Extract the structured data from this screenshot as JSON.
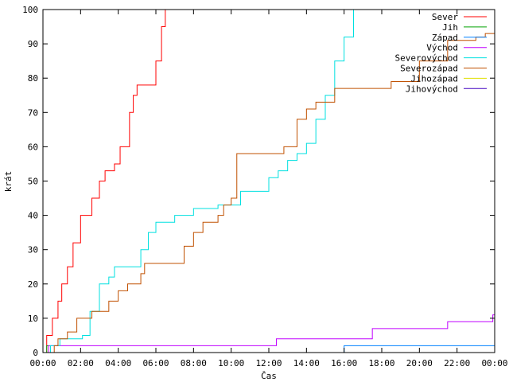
{
  "chart_data": {
    "type": "line",
    "xlabel": "Čas",
    "ylabel": "krát",
    "xlim": [
      0,
      24
    ],
    "ylim": [
      0,
      100
    ],
    "x_tick_labels": [
      "00:00",
      "02:00",
      "04:00",
      "06:00",
      "08:00",
      "10:00",
      "12:00",
      "14:00",
      "16:00",
      "18:00",
      "20:00",
      "22:00",
      "00:00"
    ],
    "y_ticks": [
      0,
      10,
      20,
      30,
      40,
      50,
      60,
      70,
      80,
      90,
      100
    ],
    "grid": false,
    "legend_position": "top-right",
    "series": [
      {
        "name": "Sever",
        "color": "#ff0000",
        "x": [
          0,
          0.2,
          0.5,
          0.8,
          1.0,
          1.3,
          1.6,
          2.0,
          2.1,
          2.6,
          3.0,
          3.3,
          3.8,
          4.1,
          4.6,
          4.8,
          5.0,
          5.8,
          6.0,
          6.3,
          6.5
        ],
        "y": [
          0,
          5,
          10,
          15,
          20,
          25,
          32,
          40,
          40,
          45,
          50,
          53,
          55,
          60,
          70,
          75,
          78,
          78,
          85,
          95,
          100
        ]
      },
      {
        "name": "Jih",
        "color": "#00a000",
        "x": [
          0,
          0.2,
          0.3
        ],
        "y": [
          0,
          2,
          2
        ]
      },
      {
        "name": "Západ",
        "color": "#0080ff",
        "x": [
          0,
          15.9,
          16.0,
          24
        ],
        "y": [
          0,
          0,
          2,
          2
        ]
      },
      {
        "name": "Východ",
        "color": "#c000ff",
        "x": [
          0,
          0.3,
          12.3,
          12.4,
          17.4,
          17.5,
          21.4,
          21.5,
          23.8,
          23.9,
          24
        ],
        "y": [
          0,
          2,
          2,
          4,
          4,
          7,
          7,
          9,
          9,
          11,
          11
        ]
      },
      {
        "name": "Severovýchod",
        "color": "#00e0e0",
        "x": [
          0,
          0.4,
          0.9,
          1.5,
          2.1,
          2.5,
          3.0,
          3.5,
          3.8,
          5.0,
          5.2,
          5.6,
          6.0,
          6.3,
          7.0,
          8.0,
          9.3,
          10.5,
          11.5,
          12.0,
          12.5,
          13.0,
          13.5,
          14.0,
          14.5,
          15.0,
          15.5,
          16.0,
          16.5
        ],
        "y": [
          0,
          2,
          4,
          4,
          5,
          12,
          20,
          22,
          25,
          25,
          30,
          35,
          38,
          38,
          40,
          42,
          43,
          47,
          47,
          51,
          53,
          56,
          58,
          61,
          68,
          75,
          85,
          92,
          100
        ]
      },
      {
        "name": "Severozápad",
        "color": "#c05000",
        "x": [
          0,
          0.6,
          0.8,
          1.3,
          1.8,
          2.6,
          3.5,
          4.0,
          4.5,
          5.2,
          5.4,
          7.0,
          7.5,
          8.0,
          8.5,
          9.3,
          9.6,
          10.0,
          10.3,
          11.0,
          12.0,
          12.8,
          13.0,
          13.5,
          14.0,
          14.5,
          15.0,
          15.5,
          16.5,
          17.8,
          18.5,
          20.0,
          21.5,
          22.5,
          23.0,
          23.5,
          24
        ],
        "y": [
          0,
          2,
          4,
          6,
          10,
          12,
          15,
          18,
          20,
          23,
          26,
          26,
          31,
          35,
          38,
          40,
          43,
          45,
          58,
          58,
          58,
          60,
          60,
          68,
          71,
          73,
          73,
          77,
          77,
          77,
          79,
          85,
          91,
          91,
          92,
          93,
          93
        ]
      },
      {
        "name": "Jihozápad",
        "color": "#e0e000",
        "x": [],
        "y": []
      },
      {
        "name": "Jihovýchod",
        "color": "#4000c0",
        "x": [],
        "y": []
      }
    ]
  }
}
